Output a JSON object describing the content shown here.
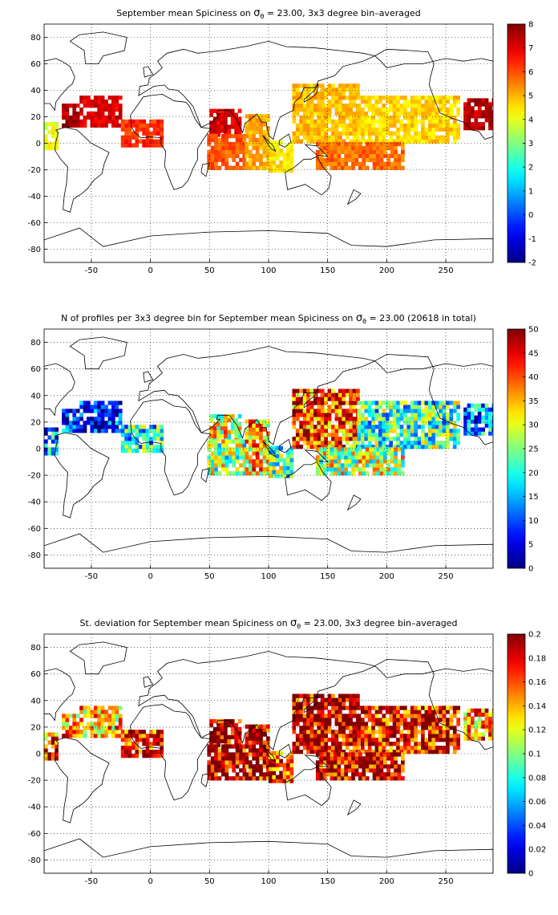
{
  "chart_data": [
    {
      "type": "heatmap",
      "title": "September mean Spiciness on σθ = 23.00, 3x3 degree bin–averaged",
      "title_parts": {
        "before": "September mean Spiciness on ",
        "symbol": "σ",
        "subscript": "θ",
        "after": " = 23.00, 3x3 degree bin–averaged"
      },
      "xlim": [
        -90,
        290
      ],
      "ylim": [
        -90,
        90
      ],
      "xticks": [
        "-50",
        "0",
        "50",
        "100",
        "150",
        "200",
        "250"
      ],
      "yticks": [
        "80",
        "60",
        "40",
        "20",
        "0",
        "-20",
        "-40",
        "-60",
        "-80"
      ],
      "colorbar": {
        "min": -2,
        "max": 8,
        "ticks": [
          "8",
          "7",
          "6",
          "5",
          "4",
          "3",
          "2",
          "1",
          "0",
          "-1",
          "-2"
        ]
      },
      "grid": true,
      "regions": [
        {
          "x": [
            -75,
            -60
          ],
          "y": [
            12,
            30
          ],
          "value": 7.5
        },
        {
          "x": [
            -60,
            -25
          ],
          "y": [
            12,
            35
          ],
          "value": 7.0
        },
        {
          "x": [
            -25,
            10
          ],
          "y": [
            -3,
            18
          ],
          "value": 6.2
        },
        {
          "x": [
            -90,
            -78
          ],
          "y": [
            -5,
            15
          ],
          "value": 4.0
        },
        {
          "x": [
            50,
            75
          ],
          "y": [
            5,
            25
          ],
          "value": 7.0
        },
        {
          "x": [
            48,
            80
          ],
          "y": [
            -20,
            5
          ],
          "value": 5.8
        },
        {
          "x": [
            80,
            100
          ],
          "y": [
            -20,
            20
          ],
          "value": 5.0
        },
        {
          "x": [
            100,
            120
          ],
          "y": [
            -22,
            0
          ],
          "value": 4.4
        },
        {
          "x": [
            120,
            175
          ],
          "y": [
            0,
            45
          ],
          "value": 4.8
        },
        {
          "x": [
            175,
            260
          ],
          "y": [
            0,
            35
          ],
          "value": 4.6
        },
        {
          "x": [
            140,
            215
          ],
          "y": [
            -20,
            0
          ],
          "value": 5.6
        },
        {
          "x": [
            265,
            290
          ],
          "y": [
            10,
            32
          ],
          "value": 7.4
        }
      ]
    },
    {
      "type": "heatmap",
      "title": "N of profiles per 3x3 degree bin for September mean Spiciness on σθ = 23.00 (20618 in total)",
      "title_parts": {
        "before": "N of profiles per 3x3 degree bin for September mean Spiciness on ",
        "symbol": "σ",
        "subscript": "θ",
        "after": " = 23.00 (20618 in total)"
      },
      "xlim": [
        -90,
        290
      ],
      "ylim": [
        -90,
        90
      ],
      "xticks": [
        "-50",
        "0",
        "50",
        "100",
        "150",
        "200",
        "250"
      ],
      "yticks": [
        "80",
        "60",
        "40",
        "20",
        "0",
        "-20",
        "-40",
        "-60",
        "-80"
      ],
      "colorbar": {
        "min": 0,
        "max": 50,
        "ticks": [
          "50",
          "45",
          "40",
          "35",
          "30",
          "25",
          "20",
          "15",
          "10",
          "5",
          "0"
        ]
      },
      "grid": true,
      "regions": [
        {
          "x": [
            -75,
            -60
          ],
          "y": [
            12,
            30
          ],
          "value": 6
        },
        {
          "x": [
            -60,
            -25
          ],
          "y": [
            12,
            35
          ],
          "value": 4
        },
        {
          "x": [
            -25,
            10
          ],
          "y": [
            -3,
            18
          ],
          "value": 18
        },
        {
          "x": [
            -90,
            -78
          ],
          "y": [
            -5,
            15
          ],
          "value": 10
        },
        {
          "x": [
            50,
            75
          ],
          "y": [
            5,
            25
          ],
          "value": 28
        },
        {
          "x": [
            48,
            80
          ],
          "y": [
            -20,
            5
          ],
          "value": 24
        },
        {
          "x": [
            80,
            100
          ],
          "y": [
            -20,
            20
          ],
          "value": 32
        },
        {
          "x": [
            100,
            120
          ],
          "y": [
            -22,
            0
          ],
          "value": 22
        },
        {
          "x": [
            120,
            175
          ],
          "y": [
            0,
            45
          ],
          "value": 38
        },
        {
          "x": [
            175,
            260
          ],
          "y": [
            0,
            35
          ],
          "value": 20
        },
        {
          "x": [
            140,
            215
          ],
          "y": [
            -20,
            0
          ],
          "value": 26
        },
        {
          "x": [
            265,
            290
          ],
          "y": [
            10,
            32
          ],
          "value": 12
        }
      ]
    },
    {
      "type": "heatmap",
      "title": "St. deviation for September mean Spiciness on σθ = 23.00, 3x3 degree bin–averaged",
      "title_parts": {
        "before": "St. deviation for September mean Spiciness on ",
        "symbol": "σ",
        "subscript": "θ",
        "after": " = 23.00, 3x3 degree bin–averaged"
      },
      "xlim": [
        -90,
        290
      ],
      "ylim": [
        -90,
        90
      ],
      "xticks": [
        "-50",
        "0",
        "50",
        "100",
        "150",
        "200",
        "250"
      ],
      "yticks": [
        "80",
        "60",
        "40",
        "20",
        "0",
        "-20",
        "-40",
        "-60",
        "-80"
      ],
      "colorbar": {
        "min": 0,
        "max": 0.2,
        "ticks": [
          "0.2",
          "0.18",
          "0.16",
          "0.14",
          "0.12",
          "0.1",
          "0.08",
          "0.06",
          "0.04",
          "0.02",
          "0"
        ]
      },
      "grid": true,
      "regions": [
        {
          "x": [
            -75,
            -60
          ],
          "y": [
            12,
            30
          ],
          "value": 0.14
        },
        {
          "x": [
            -60,
            -25
          ],
          "y": [
            12,
            35
          ],
          "value": 0.13
        },
        {
          "x": [
            -25,
            10
          ],
          "y": [
            -3,
            18
          ],
          "value": 0.17
        },
        {
          "x": [
            -90,
            -78
          ],
          "y": [
            -5,
            15
          ],
          "value": 0.15
        },
        {
          "x": [
            50,
            75
          ],
          "y": [
            5,
            25
          ],
          "value": 0.19
        },
        {
          "x": [
            48,
            80
          ],
          "y": [
            -20,
            5
          ],
          "value": 0.18
        },
        {
          "x": [
            80,
            100
          ],
          "y": [
            -20,
            20
          ],
          "value": 0.18
        },
        {
          "x": [
            100,
            120
          ],
          "y": [
            -22,
            0
          ],
          "value": 0.16
        },
        {
          "x": [
            120,
            175
          ],
          "y": [
            0,
            45
          ],
          "value": 0.18
        },
        {
          "x": [
            175,
            260
          ],
          "y": [
            0,
            35
          ],
          "value": 0.17
        },
        {
          "x": [
            140,
            215
          ],
          "y": [
            -20,
            0
          ],
          "value": 0.18
        },
        {
          "x": [
            265,
            290
          ],
          "y": [
            10,
            32
          ],
          "value": 0.14
        }
      ]
    }
  ]
}
